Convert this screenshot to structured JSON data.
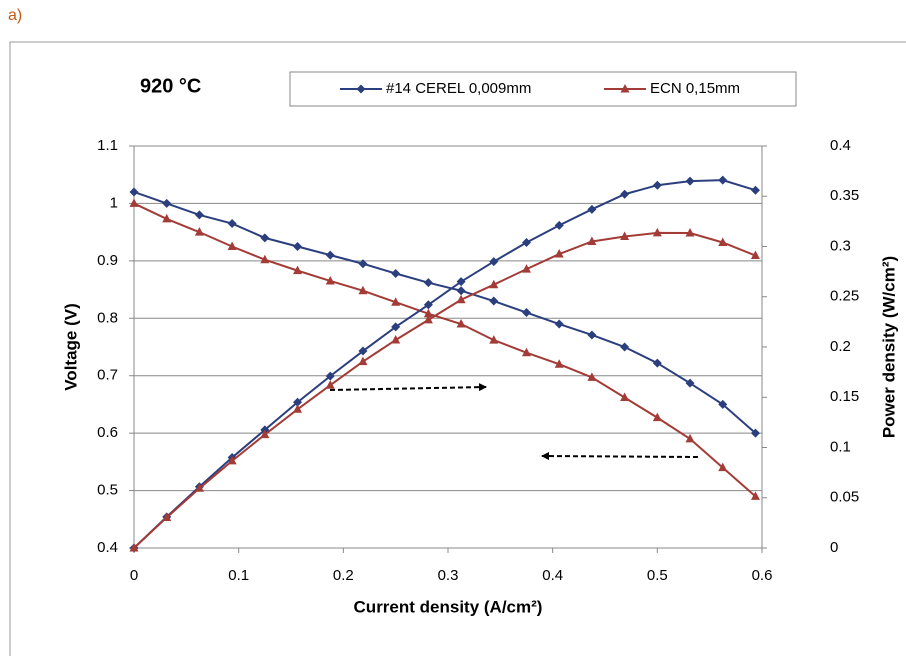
{
  "chart_data": {
    "type": "line",
    "panel_label": "a)",
    "title": "920 °C",
    "x_label": "Current density (A/cm²)",
    "y_label": "Voltage (V)",
    "y2_label": "Power density (W/cm²)",
    "x": [
      0,
      0.03125,
      0.0625,
      0.09375,
      0.125,
      0.15625,
      0.1875,
      0.21875,
      0.25,
      0.28125,
      0.3125,
      0.34375,
      0.375,
      0.40625,
      0.4375,
      0.46875,
      0.5,
      0.53125,
      0.5625,
      0.59375
    ],
    "series": [
      {
        "name": "#14 CEREL 0,009mm",
        "color": "#2b3f7e",
        "marker": "diamond",
        "values": [
          1.02,
          1.0,
          0.98,
          0.965,
          0.94,
          0.925,
          0.91,
          0.895,
          0.878,
          0.862,
          0.848,
          0.83,
          0.81,
          0.79,
          0.771,
          0.75,
          0.722,
          0.687,
          0.65,
          0.6
        ]
      },
      {
        "name": "ECN 0,15mm",
        "color": "#a33b36",
        "marker": "triangle",
        "values": [
          1.0,
          0.973,
          0.95,
          0.925,
          0.902,
          0.883,
          0.865,
          0.848,
          0.828,
          0.808,
          0.79,
          0.762,
          0.74,
          0.72,
          0.697,
          0.662,
          0.627,
          0.59,
          0.54,
          0.49
        ]
      },
      {
        "color": "#2b3f7e",
        "marker": "diamond",
        "axis": "y2",
        "values": [
          0,
          0.031,
          0.061,
          0.09,
          0.1175,
          0.145,
          0.171,
          0.196,
          0.22,
          0.242,
          0.265,
          0.285,
          0.304,
          0.321,
          0.337,
          0.352,
          0.361,
          0.365,
          0.366,
          0.356
        ]
      },
      {
        "color": "#a33b36",
        "marker": "triangle",
        "axis": "y2",
        "values": [
          0,
          0.0304,
          0.0594,
          0.0867,
          0.1128,
          0.138,
          0.162,
          0.1855,
          0.207,
          0.227,
          0.247,
          0.262,
          0.2775,
          0.2925,
          0.305,
          0.31,
          0.3135,
          0.3134,
          0.304,
          0.291
        ]
      }
    ],
    "xlim": [
      0,
      0.6
    ],
    "xticks": [
      0,
      0.1,
      0.2,
      0.3,
      0.4,
      0.5,
      0.6
    ],
    "ylim": [
      0.4,
      1.1
    ],
    "yticks": [
      0.4,
      0.5,
      0.6,
      0.7,
      0.8,
      0.9,
      1,
      1.1
    ],
    "y2lim": [
      0,
      0.4
    ],
    "y2ticks": [
      0,
      0.05,
      0.1,
      0.15,
      0.2,
      0.25,
      0.3,
      0.35,
      0.4
    ],
    "grid": true
  }
}
